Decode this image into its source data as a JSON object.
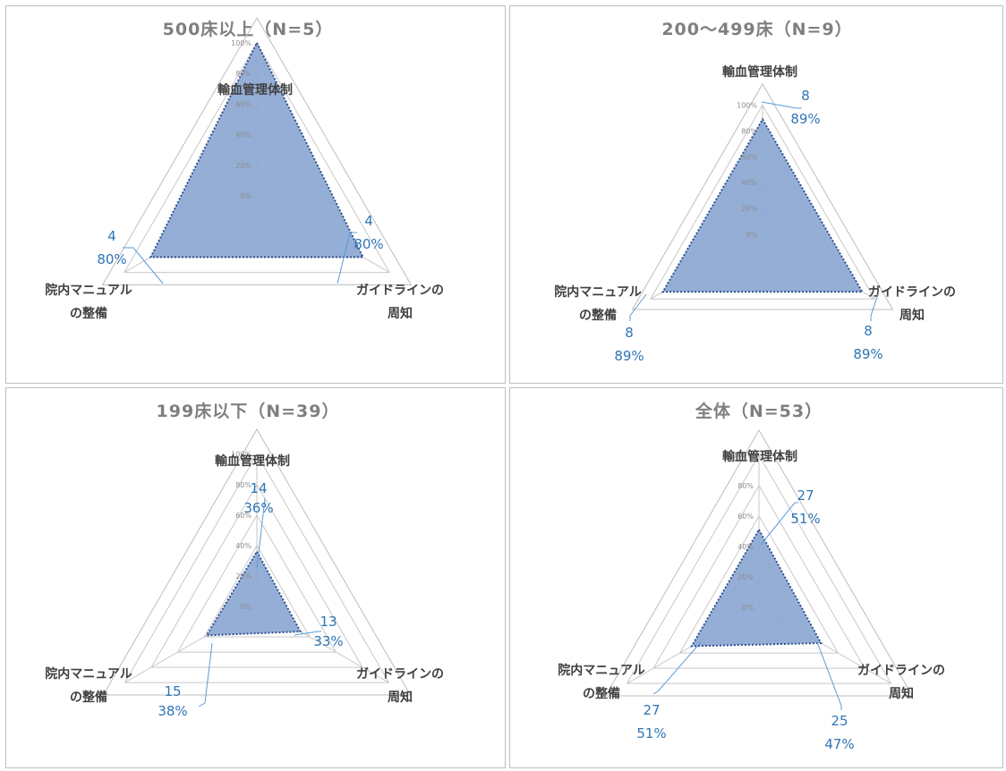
{
  "chart_data": [
    {
      "type": "radar",
      "title": "500床以上（N=5）",
      "categories": [
        [
          "輸血管理体制"
        ],
        [
          "ガイドラインの",
          "周知"
        ],
        [
          "院内マニュアル",
          "の整備"
        ]
      ],
      "ticks": [
        "0%",
        "20%",
        "40%",
        "60%",
        "80%",
        "100%"
      ],
      "range": [
        0,
        100
      ],
      "values": [
        100,
        80,
        80
      ],
      "labels": [
        null,
        {
          "count": "4",
          "pct": "80%"
        },
        {
          "count": "4",
          "pct": "80%"
        }
      ]
    },
    {
      "type": "radar",
      "title": "200～499床（N=9）",
      "categories": [
        [
          "輸血管理体制"
        ],
        [
          "ガイドラインの",
          "周知"
        ],
        [
          "院内マニュアル",
          "の整備"
        ]
      ],
      "ticks": [
        "0%",
        "20%",
        "40%",
        "60%",
        "80%",
        "100%"
      ],
      "range": [
        0,
        100
      ],
      "values": [
        89,
        89,
        89
      ],
      "labels": [
        {
          "count": "8",
          "pct": "89%"
        },
        {
          "count": "8",
          "pct": "89%"
        },
        {
          "count": "8",
          "pct": "89%"
        }
      ]
    },
    {
      "type": "radar",
      "title": "199床以下（N=39）",
      "categories": [
        [
          "輸血管理体制"
        ],
        [
          "ガイドラインの",
          "周知"
        ],
        [
          "院内マニュアル",
          "の整備"
        ]
      ],
      "ticks": [
        "0%",
        "20%",
        "40%",
        "60%",
        "80%",
        "100%"
      ],
      "range": [
        0,
        100
      ],
      "values": [
        36,
        33,
        38
      ],
      "labels": [
        {
          "count": "14",
          "pct": "36%"
        },
        {
          "count": "13",
          "pct": "33%"
        },
        {
          "count": "15",
          "pct": "38%"
        }
      ]
    },
    {
      "type": "radar",
      "title": "全体（N=53）",
      "categories": [
        [
          "輸血管理体制"
        ],
        [
          "ガイドラインの",
          "周知"
        ],
        [
          "院内マニュアル",
          "の整備"
        ]
      ],
      "ticks": [
        "0%",
        "20%",
        "40%",
        "60%",
        "80%",
        "100%"
      ],
      "range": [
        0,
        100
      ],
      "values": [
        51,
        47,
        51
      ],
      "labels": [
        {
          "count": "27",
          "pct": "51%"
        },
        {
          "count": "25",
          "pct": "47%"
        },
        {
          "count": "27",
          "pct": "51%"
        }
      ]
    }
  ]
}
